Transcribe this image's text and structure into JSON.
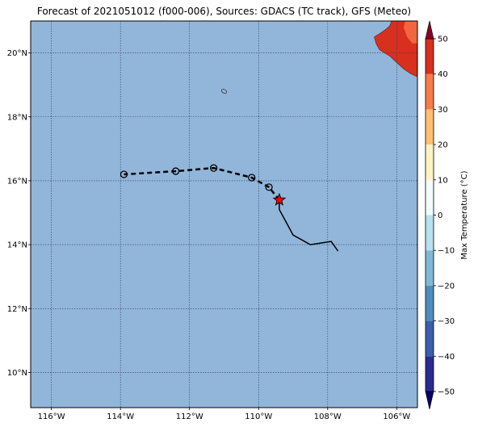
{
  "title": "Forecast of 2021051012 (f000-006), Sources: GDACS (TC track), GFS (Meteo)",
  "colors": {
    "ocean": "#92b6da",
    "land_hot": "#d7301f",
    "land_warm": "#f26541",
    "track": "#000000",
    "current_position": "#ff0000"
  },
  "map": {
    "lon_range": [
      -116.6,
      -105.4
    ],
    "lat_range": [
      8.9,
      21.0
    ],
    "gridlines": true,
    "lon_ticks": [
      {
        "value": -116,
        "label": "116°W"
      },
      {
        "value": -114,
        "label": "114°W"
      },
      {
        "value": -112,
        "label": "112°W"
      },
      {
        "value": -110,
        "label": "110°W"
      },
      {
        "value": -108,
        "label": "108°W"
      },
      {
        "value": -106,
        "label": "106°W"
      }
    ],
    "lat_ticks": [
      {
        "value": 10,
        "label": "10°N"
      },
      {
        "value": 12,
        "label": "12°N"
      },
      {
        "value": 14,
        "label": "14°N"
      },
      {
        "value": 16,
        "label": "16°N"
      },
      {
        "value": 18,
        "label": "18°N"
      },
      {
        "value": 20,
        "label": "20°N"
      }
    ]
  },
  "track": {
    "observed": [
      [
        -107.7,
        13.8
      ],
      [
        -107.9,
        14.1
      ],
      [
        -108.5,
        14.0
      ],
      [
        -109.0,
        14.3
      ],
      [
        -109.2,
        14.7
      ],
      [
        -109.4,
        15.1
      ],
      [
        -109.4,
        15.4
      ]
    ],
    "current": [
      -109.4,
      15.4
    ],
    "forecast": [
      [
        -109.4,
        15.4
      ],
      [
        -109.7,
        15.8
      ],
      [
        -110.2,
        16.1
      ],
      [
        -111.3,
        16.4
      ],
      [
        -112.4,
        16.3
      ],
      [
        -113.9,
        16.2
      ]
    ],
    "forecast_markers": [
      [
        -109.7,
        15.8
      ],
      [
        -110.2,
        16.1
      ],
      [
        -111.3,
        16.4
      ],
      [
        -112.4,
        16.3
      ],
      [
        -113.9,
        16.2
      ]
    ]
  },
  "island": [
    -111.0,
    18.8
  ],
  "colorbar": {
    "label": "Max Temperature (°C)",
    "min": -55,
    "max": 55,
    "ticks": [
      50,
      40,
      30,
      20,
      10,
      0,
      -10,
      -20,
      -30,
      -40,
      -50
    ],
    "bands": [
      {
        "from": -55,
        "to": -50,
        "color": "#08006b"
      },
      {
        "from": -50,
        "to": -40,
        "color": "#2b2b8e"
      },
      {
        "from": -40,
        "to": -30,
        "color": "#3b5ea8"
      },
      {
        "from": -30,
        "to": -20,
        "color": "#4f8ebc"
      },
      {
        "from": -20,
        "to": -10,
        "color": "#7fb9d7"
      },
      {
        "from": -10,
        "to": 0,
        "color": "#b8e0ee"
      },
      {
        "from": 0,
        "to": 10,
        "color": "#f2fbfd"
      },
      {
        "from": 10,
        "to": 20,
        "color": "#fff3c4"
      },
      {
        "from": 20,
        "to": 30,
        "color": "#fdbf73"
      },
      {
        "from": 30,
        "to": 40,
        "color": "#f67b4a"
      },
      {
        "from": 40,
        "to": 50,
        "color": "#d7301f"
      },
      {
        "from": 50,
        "to": 55,
        "color": "#8a0026"
      }
    ]
  }
}
